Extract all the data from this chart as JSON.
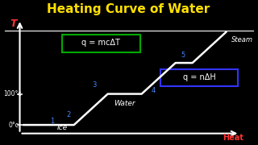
{
  "title": "Heating Curve of Water",
  "title_color": "#FFE000",
  "background_color": "#000000",
  "curve_color": "#FFFFFF",
  "axis_color": "#FFFFFF",
  "label_T": "T",
  "label_T_color": "#FF3333",
  "label_heat": "Heat",
  "label_heat_color": "#FF3333",
  "label_100c": "100°c",
  "label_0c": "0°c",
  "label_temp_color": "#FFFFFF",
  "label_ice": "Ice",
  "label_water": "Water",
  "label_steam": "Steam",
  "label_phase_color": "#FFFFFF",
  "formula1": "q = mcΔT",
  "formula1_box_color": "#00AA00",
  "formula2": "q = nΔH",
  "formula2_box_color": "#3333FF",
  "formula_text_color": "#FFFFFF",
  "segment_labels": [
    "1",
    "2",
    "3",
    "4",
    "5"
  ],
  "segment_label_color": "#4488FF",
  "curve_x": [
    0,
    1,
    1.5,
    2.5,
    3.5,
    4.5,
    5.0,
    6.0
  ],
  "curve_y": [
    0,
    0,
    0,
    2,
    2,
    4,
    4,
    6
  ],
  "sep_line_color": "#FFFFFF"
}
